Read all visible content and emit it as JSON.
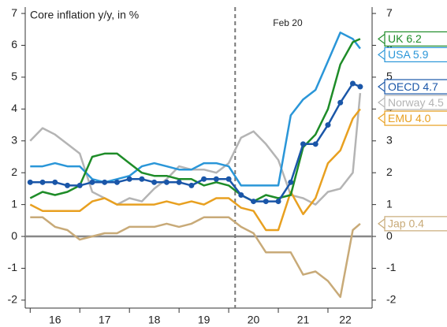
{
  "chart_data": {
    "type": "line",
    "title": "Core inflation y/y, in %",
    "x": [
      2016,
      2016.25,
      2016.5,
      2016.75,
      2017,
      2017.25,
      2017.5,
      2017.75,
      2018,
      2018.25,
      2018.5,
      2018.75,
      2019,
      2019.25,
      2019.5,
      2019.75,
      2020,
      2020.25,
      2020.5,
      2020.75,
      2021,
      2021.25,
      2021.5,
      2021.75,
      2022,
      2022.25,
      2022.5,
      2022.65
    ],
    "xlim": [
      2015.9,
      2022.89
    ],
    "xticks": [
      {
        "value": 2016.5,
        "label": "16"
      },
      {
        "value": 2017.5,
        "label": "17"
      },
      {
        "value": 2018.5,
        "label": "18"
      },
      {
        "value": 2019.5,
        "label": "19"
      },
      {
        "value": 2020.5,
        "label": "20"
      },
      {
        "value": 2021.5,
        "label": "21"
      },
      {
        "value": 2022.35,
        "label": "22"
      }
    ],
    "xminor_ticks": [
      2016,
      2017,
      2018,
      2019,
      2020,
      2021,
      2022
    ],
    "ylim": [
      -2.25,
      7.2
    ],
    "yticks": [
      -2,
      -1,
      0,
      1,
      2,
      3,
      4,
      5,
      6,
      7
    ],
    "y2lim": [
      -2.25,
      7.2
    ],
    "y2ticks": [
      -2,
      -1,
      0,
      1,
      2,
      3,
      4,
      5,
      6,
      7
    ],
    "zero_line": true,
    "grid": false,
    "annotations": [
      {
        "text": "Feb 20",
        "x": 2020.13
      }
    ],
    "series": [
      {
        "name": "Jap 0.4",
        "color": "#c8aa78",
        "values": [
          0.6,
          0.6,
          0.3,
          0.2,
          -0.1,
          0.0,
          0.1,
          0.1,
          0.3,
          0.3,
          0.3,
          0.4,
          0.3,
          0.4,
          0.6,
          0.6,
          0.6,
          0.3,
          0.1,
          -0.5,
          -0.5,
          -0.5,
          -1.2,
          -1.1,
          -1.4,
          -1.9,
          0.2,
          0.4
        ]
      },
      {
        "name": "Norway 4.5",
        "color": "#b4b4b4",
        "values": [
          3.0,
          3.4,
          3.2,
          2.9,
          2.6,
          1.4,
          1.2,
          1.0,
          1.2,
          1.1,
          1.5,
          1.8,
          2.2,
          2.1,
          2.1,
          2.0,
          2.3,
          3.1,
          3.3,
          2.9,
          2.4,
          1.3,
          1.2,
          1.0,
          1.4,
          1.5,
          2.0,
          4.5
        ]
      },
      {
        "name": "EMU 4.0",
        "color": "#e8a020",
        "values": [
          1.0,
          0.8,
          0.8,
          0.8,
          0.8,
          1.1,
          1.2,
          1.0,
          1.0,
          1.0,
          1.0,
          1.1,
          1.0,
          1.1,
          1.0,
          1.2,
          1.2,
          0.9,
          0.8,
          0.2,
          0.2,
          1.4,
          0.7,
          1.2,
          2.3,
          2.7,
          3.7,
          4.0
        ]
      },
      {
        "name": "USA 5.9",
        "color": "#2a96d8",
        "values": [
          2.2,
          2.2,
          2.3,
          2.2,
          2.2,
          1.8,
          1.7,
          1.8,
          1.9,
          2.2,
          2.3,
          2.2,
          2.1,
          2.1,
          2.3,
          2.3,
          2.2,
          1.6,
          1.6,
          1.6,
          1.6,
          3.8,
          4.3,
          4.6,
          5.5,
          6.4,
          6.2,
          5.9
        ]
      },
      {
        "name": "UK 6.2",
        "color": "#1e8c28",
        "values": [
          1.2,
          1.4,
          1.3,
          1.4,
          1.6,
          2.5,
          2.6,
          2.6,
          2.3,
          2.0,
          1.9,
          1.9,
          1.8,
          1.8,
          1.6,
          1.7,
          1.6,
          1.3,
          1.1,
          1.3,
          1.2,
          1.3,
          2.8,
          3.2,
          4.0,
          5.4,
          6.1,
          6.2
        ]
      },
      {
        "name": "OECD 4.7",
        "color": "#1a56a8",
        "markers": true,
        "values": [
          1.7,
          1.7,
          1.7,
          1.6,
          1.6,
          1.7,
          1.7,
          1.7,
          1.8,
          1.8,
          1.7,
          1.7,
          1.7,
          1.6,
          1.8,
          1.8,
          1.8,
          1.3,
          1.1,
          1.1,
          1.1,
          1.7,
          2.9,
          2.9,
          3.5,
          4.2,
          4.8,
          4.7
        ]
      }
    ]
  }
}
